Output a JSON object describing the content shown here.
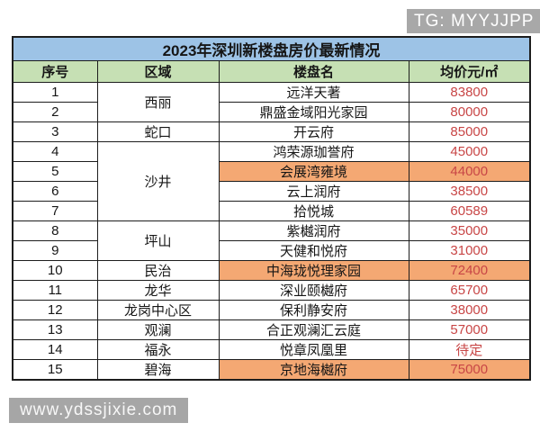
{
  "badge": {
    "label": "TG: MYYJJPP"
  },
  "watermark": {
    "label": "www.ydssjixie.com"
  },
  "colors": {
    "title_bg": "#9DC3E6",
    "header_bg": "#C6E0B4",
    "highlight_bg": "#F4A873",
    "price_color": "#C84646",
    "badge_bg": "#A8A8A8"
  },
  "chart_data": {
    "type": "table",
    "title": "2023年深圳新楼盘房价最新情况",
    "columns": [
      "序号",
      "区域",
      "楼盘名",
      "均价元/㎡"
    ],
    "rows": [
      {
        "no": "1",
        "region": "西丽",
        "region_span": 2,
        "name": "远洋天著",
        "price": "83800",
        "highlight": false
      },
      {
        "no": "2",
        "name": "鼎盛金域阳光家园",
        "price": "80000",
        "highlight": false
      },
      {
        "no": "3",
        "region": "蛇口",
        "region_span": 1,
        "name": "开云府",
        "price": "85000",
        "highlight": false
      },
      {
        "no": "4",
        "region": "沙井",
        "region_span": 4,
        "name": "鸿荣源珈誉府",
        "price": "45000",
        "highlight": false
      },
      {
        "no": "5",
        "name": "会展湾雍境",
        "price": "44000",
        "highlight": true
      },
      {
        "no": "6",
        "name": "云上润府",
        "price": "38500",
        "highlight": false
      },
      {
        "no": "7",
        "name": "拾悦城",
        "price": "60589",
        "highlight": false
      },
      {
        "no": "8",
        "region": "坪山",
        "region_span": 2,
        "name": "紫樾润府",
        "price": "35000",
        "highlight": false
      },
      {
        "no": "9",
        "name": "天健和悦府",
        "price": "31000",
        "highlight": false
      },
      {
        "no": "10",
        "region": "民治",
        "region_span": 1,
        "name": "中海珑悦理家园",
        "price": "72400",
        "highlight": true
      },
      {
        "no": "11",
        "region": "龙华",
        "region_span": 1,
        "name": "深业颐樾府",
        "price": "65700",
        "highlight": false
      },
      {
        "no": "12",
        "region": "龙岗中心区",
        "region_span": 1,
        "name": "保利静安府",
        "price": "38000",
        "highlight": false
      },
      {
        "no": "13",
        "region": "观澜",
        "region_span": 1,
        "name": "合正观澜汇云庭",
        "price": "57000",
        "highlight": false
      },
      {
        "no": "14",
        "region": "福永",
        "region_span": 1,
        "name": "悦章凤凰里",
        "price": "待定",
        "highlight": false
      },
      {
        "no": "15",
        "region": "碧海",
        "region_span": 1,
        "name": "京地海樾府",
        "price": "75000",
        "highlight": true
      }
    ]
  }
}
